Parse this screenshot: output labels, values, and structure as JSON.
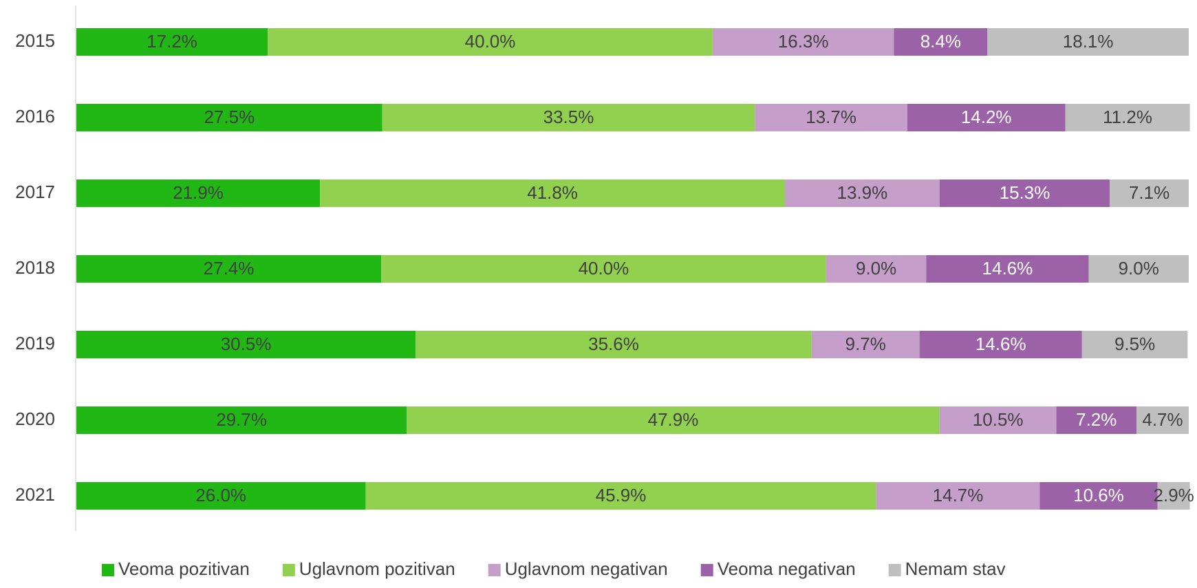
{
  "chart_data": {
    "type": "stacked-barh",
    "categories": [
      "2015",
      "2016",
      "2017",
      "2018",
      "2019",
      "2020",
      "2021"
    ],
    "xlim": [
      0,
      100
    ],
    "legend": "bottom",
    "series": [
      {
        "name": "Veoma pozitivan",
        "color": "#21b816",
        "label_color": "#404040",
        "values": [
          17.2,
          27.5,
          21.9,
          27.4,
          30.5,
          29.7,
          26.0
        ],
        "value_labels": [
          "17.2%",
          "27.5%",
          "21.9%",
          "27.4%",
          "30.5%",
          "29.7%",
          "26.0%"
        ]
      },
      {
        "name": "Uglavnom pozitivan",
        "color": "#92d050",
        "label_color": "#404040",
        "values": [
          40.0,
          33.5,
          41.8,
          40.0,
          35.6,
          47.9,
          45.9
        ],
        "value_labels": [
          "40.0%",
          "33.5%",
          "41.8%",
          "40.0%",
          "35.6%",
          "47.9%",
          "45.9%"
        ]
      },
      {
        "name": "Uglavnom negativan",
        "color": "#c59ec9",
        "label_color": "#404040",
        "values": [
          16.3,
          13.7,
          13.9,
          9.0,
          9.7,
          10.5,
          14.7
        ],
        "value_labels": [
          "16.3%",
          "13.7%",
          "13.9%",
          "9.0%",
          "9.7%",
          "10.5%",
          "14.7%"
        ]
      },
      {
        "name": "Veoma negativan",
        "color": "#9c62a8",
        "label_color": "#ffffff",
        "values": [
          8.4,
          14.2,
          15.3,
          14.6,
          14.6,
          7.2,
          10.6
        ],
        "value_labels": [
          "8.4%",
          "14.2%",
          "15.3%",
          "14.6%",
          "14.6%",
          "7.2%",
          "10.6%"
        ]
      },
      {
        "name": "Nemam stav",
        "color": "#bfbfbf",
        "label_color": "#404040",
        "values": [
          18.1,
          11.2,
          7.1,
          9.0,
          9.5,
          4.7,
          2.9
        ],
        "value_labels": [
          "18.1%",
          "11.2%",
          "7.1%",
          "9.0%",
          "9.5%",
          "4.7%",
          "2.9%"
        ]
      }
    ]
  }
}
